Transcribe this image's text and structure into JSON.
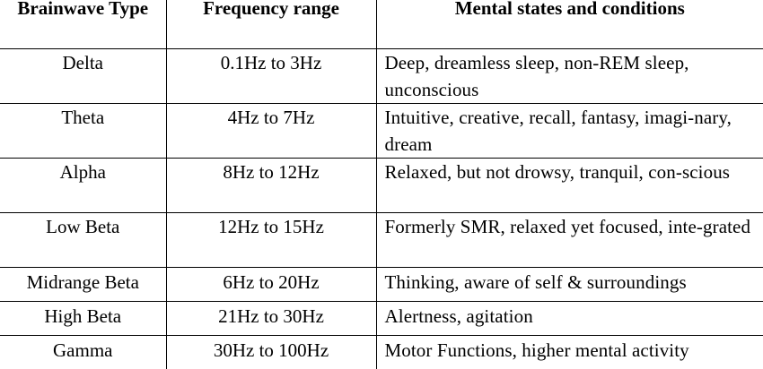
{
  "table": {
    "headers": [
      "Brainwave Type",
      "Frequency range",
      "Mental states and conditions"
    ],
    "rows": [
      {
        "type": "Delta",
        "frequency": "0.1Hz to 3Hz",
        "states": "Deep, dreamless sleep, non-REM sleep, unconscious"
      },
      {
        "type": "Theta",
        "frequency": "4Hz to 7Hz",
        "states": "Intuitive, creative, recall, fantasy, imagi-nary, dream"
      },
      {
        "type": "Alpha",
        "frequency": "8Hz to 12Hz",
        "states": "Relaxed, but not drowsy, tranquil, con-scious"
      },
      {
        "type": "Low Beta",
        "frequency": "12Hz to 15Hz",
        "states": "Formerly SMR, relaxed yet focused, inte-grated"
      },
      {
        "type": "Midrange Beta",
        "frequency": "6Hz to 20Hz",
        "states": "Thinking, aware of self & surroundings"
      },
      {
        "type": "High Beta",
        "frequency": "21Hz to 30Hz",
        "states": "Alertness, agitation"
      },
      {
        "type": "Gamma",
        "frequency": "30Hz to 100Hz",
        "states": "Motor Functions, higher mental activity"
      }
    ]
  }
}
